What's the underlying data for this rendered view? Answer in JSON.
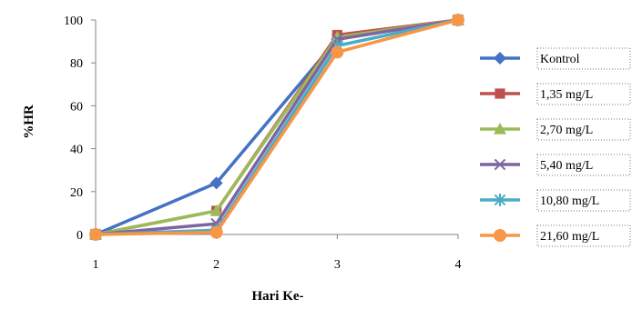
{
  "chart_data": {
    "type": "line",
    "xlabel": "Hari Ke-",
    "ylabel": "%HR",
    "x": [
      1,
      2,
      3,
      4
    ],
    "ylim": [
      0,
      100
    ],
    "yticks": [
      0,
      20,
      40,
      60,
      80,
      100
    ],
    "grid": false,
    "legend_position": "right",
    "series": [
      {
        "name": "Kontrol",
        "color": "#4472C4",
        "marker": "diamond",
        "values": [
          0,
          24,
          91,
          100
        ]
      },
      {
        "name": "1,35 mg/L",
        "color": "#C0504D",
        "marker": "square",
        "values": [
          0,
          11,
          93,
          100
        ]
      },
      {
        "name": "2,70 mg/L",
        "color": "#9BBB59",
        "marker": "triangle",
        "values": [
          0,
          11,
          92,
          100
        ]
      },
      {
        "name": "5,40 mg/L",
        "color": "#8064A2",
        "marker": "x",
        "values": [
          0,
          5,
          91,
          100
        ]
      },
      {
        "name": "10,80 mg/L",
        "color": "#4BACC6",
        "marker": "star",
        "values": [
          0,
          2,
          88,
          100
        ]
      },
      {
        "name": "21,60 mg/L",
        "color": "#F79646",
        "marker": "circle",
        "values": [
          0,
          1,
          85,
          100
        ]
      }
    ]
  }
}
